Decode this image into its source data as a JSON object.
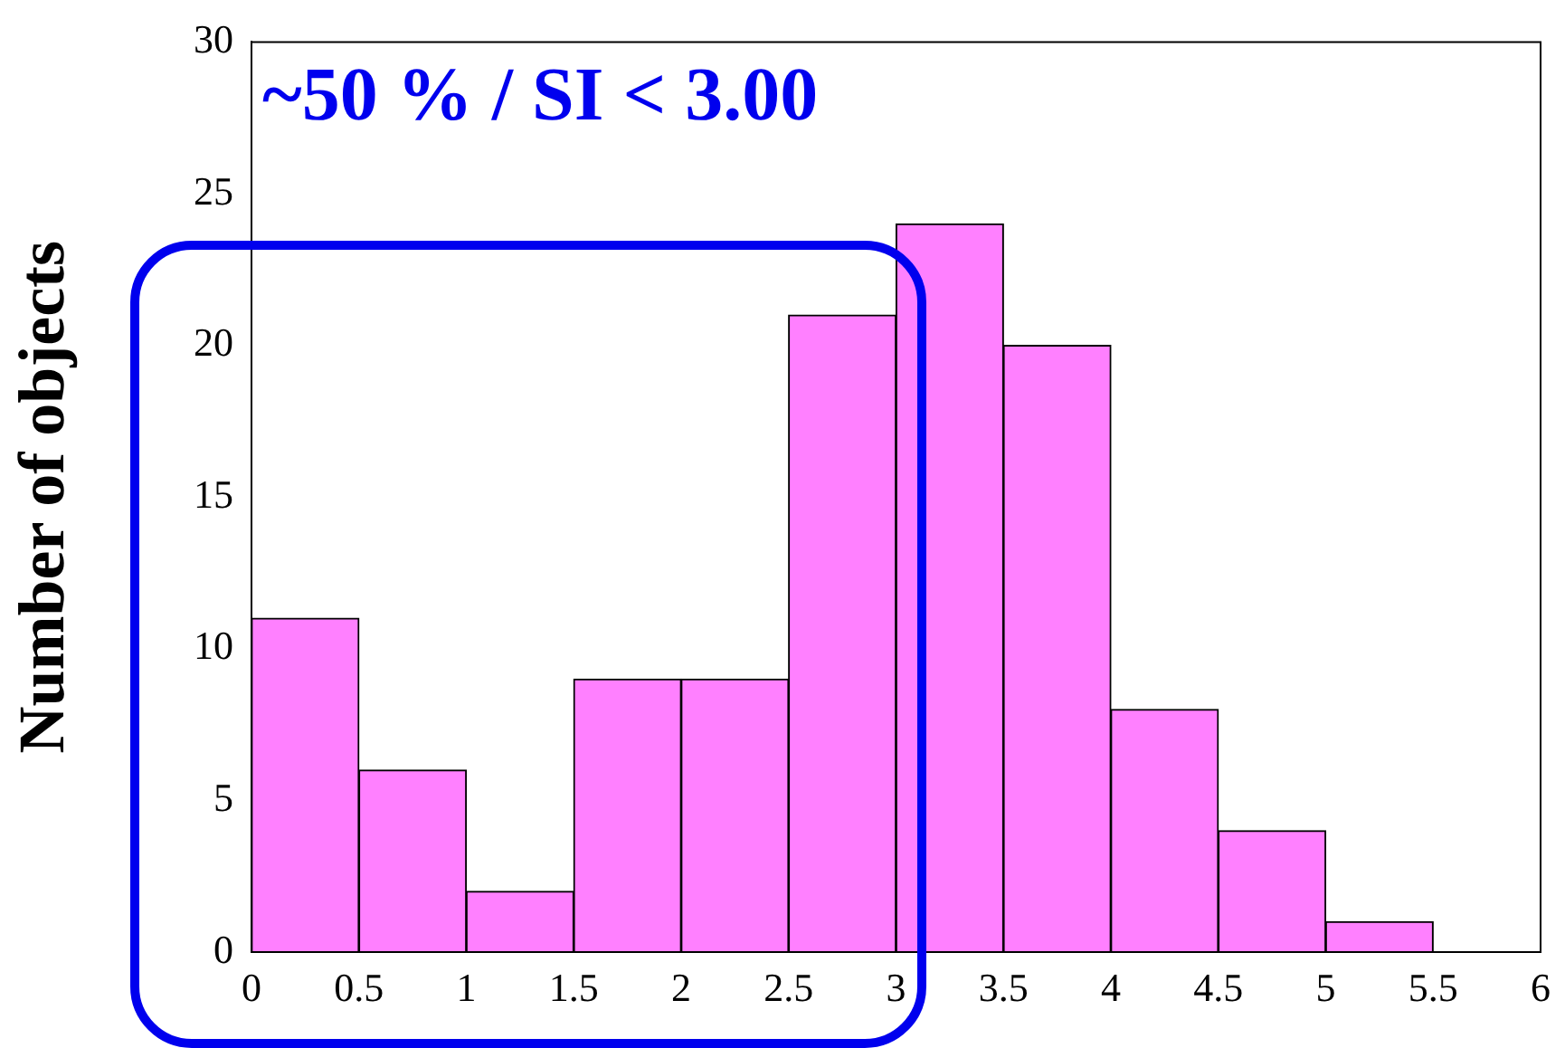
{
  "chart_data": {
    "type": "histogram",
    "ylabel": "Number of objects",
    "annotations": [
      "~50 % / SI < 3.00"
    ],
    "bins": [
      0,
      0.5,
      1,
      1.5,
      2,
      2.5,
      3,
      3.5,
      4,
      4.5,
      5,
      5.5,
      6
    ],
    "values": [
      11,
      6,
      2,
      9,
      9,
      21,
      24,
      20,
      8,
      4,
      1,
      0
    ],
    "color": "#ff80ff",
    "xlim": [
      0,
      6
    ],
    "xticks": [
      0,
      0.5,
      1,
      1.5,
      2,
      2.5,
      3,
      3.5,
      4,
      4.5,
      5,
      5.5,
      6
    ],
    "ylim": [
      0,
      30
    ],
    "yticks": [
      0,
      5,
      10,
      15,
      20,
      25,
      30
    ],
    "grid": false
  }
}
